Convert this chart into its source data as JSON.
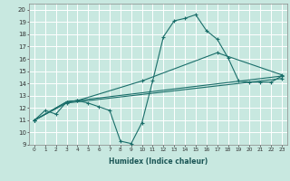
{
  "xlabel": "Humidex (Indice chaleur)",
  "bg_color": "#c8e8e0",
  "line_color": "#1a6e6a",
  "grid_color": "#ffffff",
  "xlim": [
    -0.5,
    23.5
  ],
  "ylim": [
    9,
    20.5
  ],
  "yticks": [
    9,
    10,
    11,
    12,
    13,
    14,
    15,
    16,
    17,
    18,
    19,
    20
  ],
  "xticks": [
    0,
    1,
    2,
    3,
    4,
    5,
    6,
    7,
    8,
    9,
    10,
    11,
    12,
    13,
    14,
    15,
    16,
    17,
    18,
    19,
    20,
    21,
    22,
    23
  ],
  "xtick_labels": [
    "0",
    "1",
    "2",
    "3",
    "4",
    "5",
    "6",
    "7",
    "8",
    "9",
    "10",
    "11",
    "12",
    "13",
    "14",
    "15",
    "16",
    "17",
    "18",
    "19",
    "20",
    "21",
    "22",
    "23"
  ],
  "line1_x": [
    0,
    1,
    2,
    3,
    4,
    5,
    6,
    7,
    8,
    9,
    10,
    11,
    12,
    13,
    14,
    15,
    16,
    17,
    18,
    19,
    20,
    21,
    22,
    23
  ],
  "line1_y": [
    11.0,
    11.8,
    11.5,
    12.5,
    12.6,
    12.4,
    12.1,
    11.8,
    9.3,
    9.1,
    10.8,
    14.2,
    17.8,
    19.1,
    19.3,
    19.6,
    18.3,
    17.6,
    16.1,
    14.2,
    14.1,
    14.1,
    14.1,
    14.6
  ],
  "line2_x": [
    0,
    3,
    4,
    10,
    17,
    23
  ],
  "line2_y": [
    11.0,
    12.5,
    12.6,
    14.2,
    16.5,
    14.7
  ],
  "line3_x": [
    0,
    3,
    23
  ],
  "line3_y": [
    11.0,
    12.5,
    14.6
  ],
  "line4_x": [
    0,
    3,
    23
  ],
  "line4_y": [
    11.0,
    12.4,
    14.4
  ]
}
